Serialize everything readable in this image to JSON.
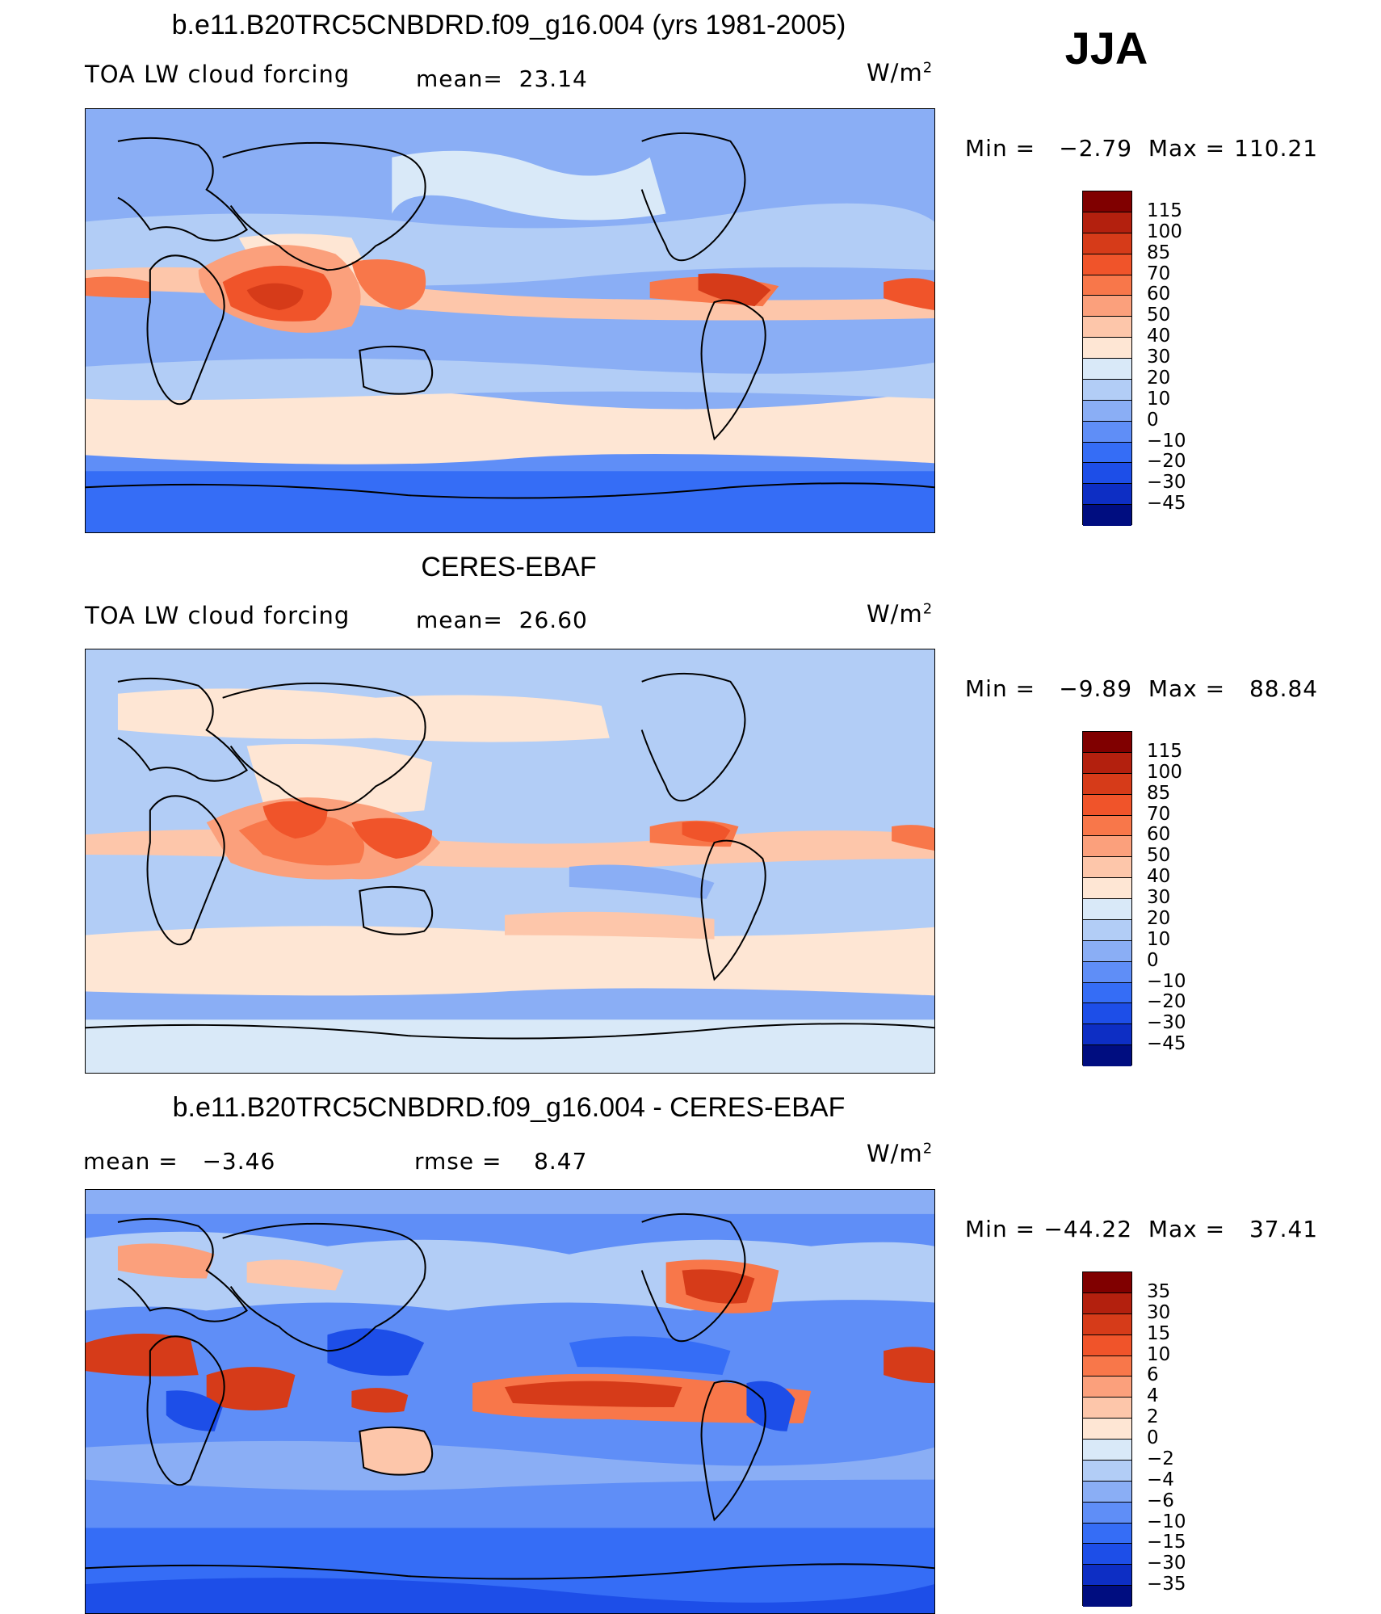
{
  "season": "JJA",
  "panels": [
    {
      "title": "b.e11.B20TRC5CNBDRD.f09_g16.004 (yrs 1981-2005)",
      "left_label": "TOA LW cloud forcing",
      "stat1": "mean=  23.14",
      "stat2": "",
      "units": "W/m",
      "units_sup": "2",
      "min_label": "Min =",
      "min_value": "−2.79",
      "max_label": "Max =",
      "max_value": "110.21",
      "colorbar_levels": [
        "115",
        "100",
        "85",
        "70",
        "60",
        "50",
        "40",
        "30",
        "20",
        "10",
        "0",
        "−10",
        "−20",
        "−30",
        "−45"
      ],
      "colorbar_colors": [
        "#800000",
        "#b3200e",
        "#d63b19",
        "#f0542a",
        "#f8774a",
        "#fba07c",
        "#fdc6aa",
        "#fee6d4",
        "#d9e9f8",
        "#b2cdf6",
        "#8aaef5",
        "#5f8ef7",
        "#356df6",
        "#1d4ee8",
        "#0d2ec4",
        "#000d80"
      ]
    },
    {
      "title": "CERES-EBAF",
      "left_label": "TOA LW cloud forcing",
      "stat1": "mean=  26.60",
      "stat2": "",
      "units": "W/m",
      "units_sup": "2",
      "min_label": "Min =",
      "min_value": "−9.89",
      "max_label": "Max =",
      "max_value": "88.84",
      "colorbar_levels": [
        "115",
        "100",
        "85",
        "70",
        "60",
        "50",
        "40",
        "30",
        "20",
        "10",
        "0",
        "−10",
        "−20",
        "−30",
        "−45"
      ],
      "colorbar_colors": [
        "#800000",
        "#b3200e",
        "#d63b19",
        "#f0542a",
        "#f8774a",
        "#fba07c",
        "#fdc6aa",
        "#fee6d4",
        "#d9e9f8",
        "#b2cdf6",
        "#8aaef5",
        "#5f8ef7",
        "#356df6",
        "#1d4ee8",
        "#0d2ec4",
        "#000d80"
      ]
    },
    {
      "title": "b.e11.B20TRC5CNBDRD.f09_g16.004 - CERES-EBAF",
      "left_label": "",
      "stat1": "mean =   −3.46",
      "stat2": "rmse =    8.47",
      "units": "W/m",
      "units_sup": "2",
      "min_label": "Min =",
      "min_value": "−44.22",
      "max_label": "Max =",
      "max_value": "37.41",
      "colorbar_levels": [
        "35",
        "30",
        "15",
        "10",
        "6",
        "4",
        "2",
        "0",
        "−2",
        "−4",
        "−6",
        "−10",
        "−15",
        "−30",
        "−35"
      ],
      "colorbar_colors": [
        "#800000",
        "#b3200e",
        "#d63b19",
        "#f0542a",
        "#f8774a",
        "#fba07c",
        "#fdc6aa",
        "#fee6d4",
        "#d9e9f8",
        "#b2cdf6",
        "#8aaef5",
        "#5f8ef7",
        "#356df6",
        "#1d4ee8",
        "#0d2ec4",
        "#000d80"
      ]
    }
  ]
}
